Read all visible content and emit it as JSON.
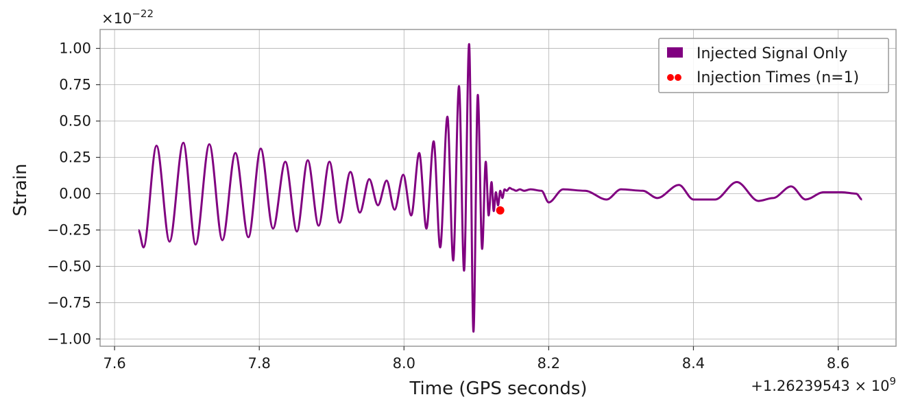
{
  "chart_data": {
    "type": "line",
    "xlabel": "Time (GPS seconds)",
    "ylabel": "Strain",
    "y_scale_label": "×10",
    "y_scale_exp": "−22",
    "x_offset_label": "+1.26239543 × 10",
    "x_offset_exp": "9",
    "xlim": [
      7.58,
      8.68
    ],
    "ylim": [
      -1.05,
      1.13
    ],
    "x_ticks": [
      7.6,
      7.8,
      8.0,
      8.2,
      8.4,
      8.6
    ],
    "x_tick_labels": [
      "7.6",
      "7.8",
      "8.0",
      "8.2",
      "8.4",
      "8.6"
    ],
    "y_ticks": [
      1.0,
      0.75,
      0.5,
      0.25,
      0.0,
      -0.25,
      -0.5,
      -0.75,
      -1.0
    ],
    "y_tick_labels": [
      "1.00",
      "0.75",
      "0.50",
      "0.25",
      "0.00",
      "−0.25",
      "−0.50",
      "−0.75",
      "−1.00"
    ],
    "grid": true,
    "legend_position": "top-right",
    "series": [
      {
        "name": "Injected Signal Only",
        "color": "#800080",
        "x": [
          7.633,
          7.64,
          7.658,
          7.676,
          7.695,
          7.712,
          7.731,
          7.749,
          7.767,
          7.785,
          7.802,
          7.819,
          7.836,
          7.852,
          7.867,
          7.882,
          7.897,
          7.911,
          7.926,
          7.939,
          7.952,
          7.964,
          7.976,
          7.987,
          7.999,
          8.01,
          8.021,
          8.031,
          8.041,
          8.05,
          8.06,
          8.068,
          8.076,
          8.083,
          8.09,
          8.096,
          8.102,
          8.108,
          8.113,
          8.117,
          8.121,
          8.124,
          8.127,
          8.13,
          8.133,
          8.136,
          8.139,
          8.142,
          8.146,
          8.15,
          8.155,
          8.16,
          8.166,
          8.175,
          8.19,
          8.2,
          8.22,
          8.25,
          8.28,
          8.3,
          8.33,
          8.35,
          8.38,
          8.4,
          8.43,
          8.46,
          8.49,
          8.51,
          8.535,
          8.555,
          8.58,
          8.605,
          8.625,
          8.633
        ],
        "y": [
          -0.25,
          -0.37,
          0.33,
          -0.33,
          0.35,
          -0.35,
          0.34,
          -0.32,
          0.28,
          -0.3,
          0.31,
          -0.24,
          0.22,
          -0.26,
          0.23,
          -0.22,
          0.22,
          -0.2,
          0.15,
          -0.13,
          0.1,
          -0.08,
          0.09,
          -0.11,
          0.13,
          -0.15,
          0.28,
          -0.24,
          0.36,
          -0.37,
          0.53,
          -0.46,
          0.74,
          -0.53,
          1.03,
          -0.95,
          0.68,
          -0.38,
          0.22,
          -0.15,
          0.08,
          -0.12,
          0.01,
          -0.08,
          0.02,
          -0.03,
          0.03,
          0.02,
          0.04,
          0.03,
          0.02,
          0.03,
          0.02,
          0.03,
          0.02,
          -0.06,
          0.03,
          0.02,
          -0.04,
          0.03,
          0.02,
          -0.03,
          0.06,
          -0.04,
          -0.04,
          0.08,
          -0.05,
          -0.03,
          0.05,
          -0.04,
          0.01,
          0.01,
          0.0,
          -0.04
        ]
      },
      {
        "name": "Injection Times (n=1)",
        "color": "#ff0000",
        "type": "scatter",
        "points": [
          {
            "x": 8.133,
            "y": -0.115
          }
        ]
      }
    ]
  }
}
